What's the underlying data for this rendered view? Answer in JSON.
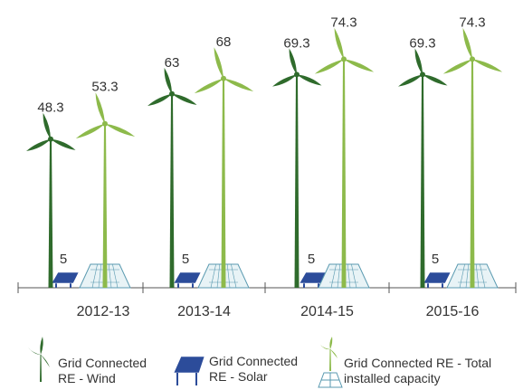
{
  "chart_data": {
    "type": "bar",
    "categories": [
      "2012-13",
      "2013-14",
      "2014-15",
      "2015-16"
    ],
    "series": [
      {
        "name": "Grid Connected RE - Wind",
        "color": "#2f6b2c",
        "values": [
          48.3,
          63,
          69.3,
          69.3
        ]
      },
      {
        "name": "Grid Connected RE - Solar",
        "color": "#2c4c9a",
        "values": [
          5,
          5,
          5,
          5
        ]
      },
      {
        "name": "Grid Connected RE - Total installed capacity",
        "color": "#8dba4b",
        "values": [
          53.3,
          68,
          74.3,
          74.3
        ]
      }
    ]
  }
}
